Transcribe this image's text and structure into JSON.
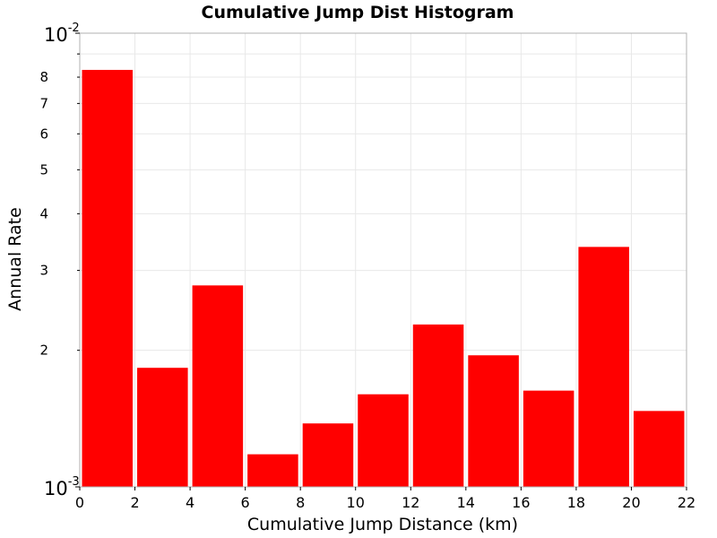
{
  "chart_data": {
    "type": "bar",
    "title": "Cumulative Jump Dist Histogram",
    "xlabel": "Cumulative Jump Distance (km)",
    "ylabel": "Annual Rate",
    "xlim": [
      0,
      22
    ],
    "ylim": [
      0.001,
      0.01
    ],
    "yscale": "log",
    "grid": true,
    "bar_color": "#ff0000",
    "bin_width": 2,
    "x": [
      1,
      3,
      5,
      7,
      9,
      11,
      13,
      15,
      17,
      19,
      21
    ],
    "values": [
      0.0083,
      0.00183,
      0.00278,
      0.00118,
      0.00138,
      0.0016,
      0.00228,
      0.00195,
      0.00163,
      0.00338,
      0.00147
    ],
    "x_ticks": [
      "0",
      "2",
      "4",
      "6",
      "8",
      "10",
      "12",
      "14",
      "16",
      "18",
      "20",
      "22"
    ],
    "y_decade_ticks": [
      {
        "value": 0.01,
        "base": "10",
        "exp": "-2"
      },
      {
        "value": 0.001,
        "base": "10",
        "exp": "-3"
      }
    ],
    "y_minor_ticks": [
      {
        "value": 0.002,
        "label": "2"
      },
      {
        "value": 0.003,
        "label": "3"
      },
      {
        "value": 0.004,
        "label": "4"
      },
      {
        "value": 0.005,
        "label": "5"
      },
      {
        "value": 0.006,
        "label": "6"
      },
      {
        "value": 0.007,
        "label": "7"
      },
      {
        "value": 0.008,
        "label": "8"
      },
      {
        "value": 0.009,
        "label": ""
      }
    ]
  }
}
